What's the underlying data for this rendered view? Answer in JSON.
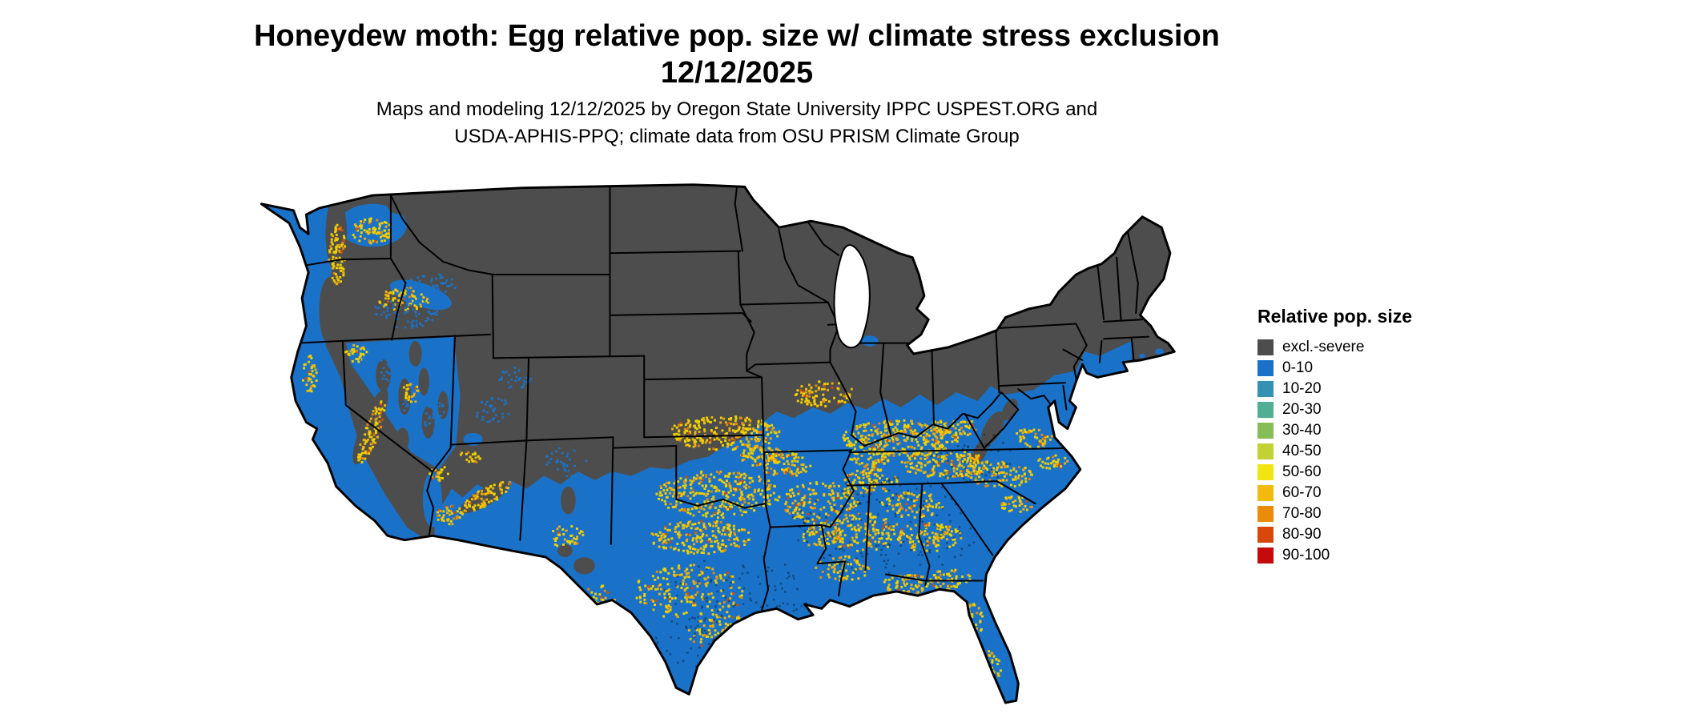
{
  "title": {
    "line1": "Honeydew moth: Egg relative pop. size w/ climate stress exclusion",
    "line2": "12/12/2025"
  },
  "subtitle": {
    "line1": "Maps and modeling 12/12/2025 by Oregon State University IPPC USPEST.ORG and",
    "line2": "USDA-APHIS-PPQ; climate data from OSU PRISM Climate Group"
  },
  "legend": {
    "title": "Relative pop. size",
    "items": [
      {
        "label": "excl.-severe",
        "color": "#4d4d4d"
      },
      {
        "label": "0-10",
        "color": "#1a72c8"
      },
      {
        "label": "10-20",
        "color": "#3391b4"
      },
      {
        "label": "20-30",
        "color": "#4fae93"
      },
      {
        "label": "30-40",
        "color": "#86bd56"
      },
      {
        "label": "40-50",
        "color": "#c1d232"
      },
      {
        "label": "50-60",
        "color": "#f2e410"
      },
      {
        "label": "60-70",
        "color": "#f2ba0c"
      },
      {
        "label": "70-80",
        "color": "#ec8b0a"
      },
      {
        "label": "80-90",
        "color": "#d9480b"
      },
      {
        "label": "90-100",
        "color": "#c40a0a"
      }
    ]
  },
  "map": {
    "background": "#ffffff",
    "border_color": "#000000",
    "fill_excluded": "#4d4d4d",
    "fill_low": "#1a72c8",
    "speckle_colors": [
      "#f0d000",
      "#eab010",
      "#e2880e",
      "#cc4e08"
    ]
  }
}
